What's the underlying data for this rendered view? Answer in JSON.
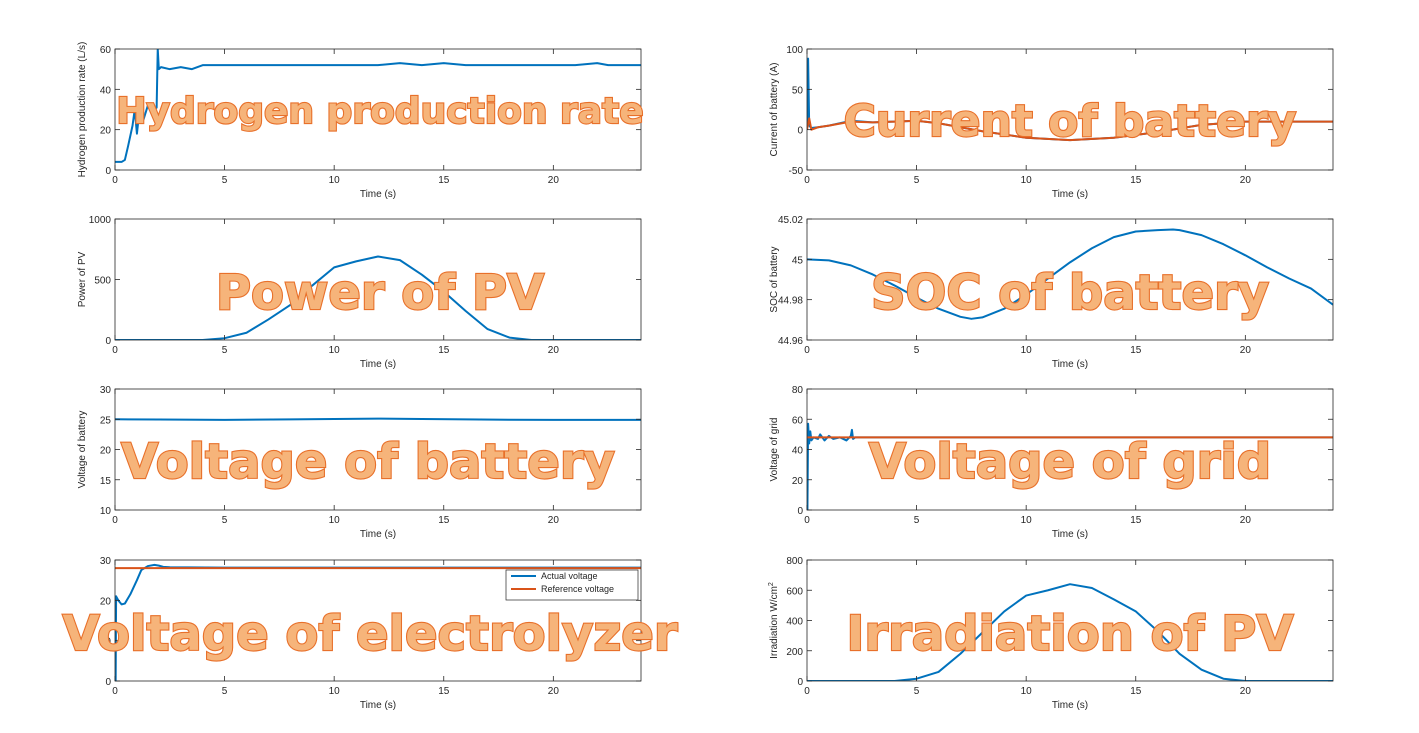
{
  "colors": {
    "blue": "#0072bd",
    "orange": "#d95319",
    "annotation_fill": "#f6b47a",
    "annotation_stroke": "#e8702a",
    "axis": "#262626"
  },
  "chart_data": [
    {
      "type": "line",
      "xlabel": "Time (s)",
      "ylabel": "Hydrogen production rate (L/s)",
      "annotation": "Hydrogen production rate",
      "xlim": [
        0,
        24
      ],
      "ylim": [
        0,
        60
      ],
      "xticks": [
        0,
        5,
        10,
        15,
        20
      ],
      "yticks": [
        0,
        20,
        40,
        60
      ],
      "series": [
        {
          "color": "#0072bd",
          "x": [
            0,
            0.3,
            0.45,
            0.6,
            0.8,
            0.9,
            1.0,
            1.1,
            1.3,
            1.5,
            1.7,
            1.9,
            1.95,
            2.0,
            2.1,
            2.5,
            3,
            3.5,
            4,
            5,
            7,
            9,
            10,
            11,
            12,
            13,
            14,
            15,
            16,
            17,
            18,
            19,
            20,
            21,
            22,
            22.5,
            24
          ],
          "y": [
            4,
            4,
            5,
            12,
            22,
            30,
            18,
            28,
            25,
            32,
            28,
            31,
            60,
            50,
            51,
            50,
            51,
            50,
            52,
            52,
            52,
            52,
            52,
            52,
            52,
            53,
            52,
            53,
            52,
            52,
            52,
            52,
            52,
            52,
            53,
            52,
            52
          ]
        }
      ]
    },
    {
      "type": "line",
      "xlabel": "Time (s)",
      "ylabel": "Current of battery (A)",
      "annotation": "Current of battery",
      "xlim": [
        0,
        24
      ],
      "ylim": [
        -50,
        100
      ],
      "xticks": [
        0,
        5,
        10,
        15,
        20
      ],
      "yticks": [
        -50,
        0,
        50,
        100
      ],
      "series": [
        {
          "color": "#0072bd",
          "x": [
            0,
            0.05,
            0.1,
            0.2,
            0.5,
            1,
            2,
            3,
            4,
            5,
            6,
            8,
            10,
            12,
            14,
            16,
            18,
            20,
            22,
            24
          ],
          "y": [
            0,
            88,
            5,
            2,
            3,
            5,
            11,
            9,
            10,
            11,
            8,
            -2,
            -10,
            -13,
            -10,
            -3,
            6,
            10,
            10,
            10
          ]
        },
        {
          "color": "#d95319",
          "x": [
            0,
            0.1,
            0.2,
            0.5,
            1,
            2,
            3,
            4,
            5,
            6,
            8,
            10,
            12,
            14,
            16,
            18,
            20,
            22,
            24
          ],
          "y": [
            0,
            14,
            0,
            3,
            5,
            10,
            9,
            10,
            11,
            8,
            -2,
            -10,
            -13,
            -10,
            -3,
            6,
            10,
            10,
            10
          ]
        }
      ]
    },
    {
      "type": "line",
      "xlabel": "Time (s)",
      "ylabel": "Power of PV",
      "annotation": "Power of PV",
      "xlim": [
        0,
        24
      ],
      "ylim": [
        0,
        1000
      ],
      "xticks": [
        0,
        5,
        10,
        15,
        20
      ],
      "yticks": [
        0,
        500,
        1000
      ],
      "series": [
        {
          "color": "#0072bd",
          "x": [
            0,
            4,
            5,
            6,
            7,
            8,
            9,
            10,
            11,
            12,
            13,
            14,
            15,
            16,
            17,
            18,
            19,
            20,
            24
          ],
          "y": [
            0,
            0,
            15,
            60,
            170,
            290,
            450,
            600,
            650,
            690,
            660,
            540,
            400,
            240,
            90,
            20,
            0,
            0,
            0
          ]
        }
      ]
    },
    {
      "type": "line",
      "xlabel": "Time (s)",
      "ylabel": "SOC of battery",
      "annotation": "SOC of battery",
      "xlim": [
        0,
        24
      ],
      "ylim": [
        44.96,
        45.02
      ],
      "xticks": [
        0,
        5,
        10,
        15,
        20
      ],
      "yticks": [
        44.96,
        44.98,
        45,
        45.02
      ],
      "series": [
        {
          "color": "#0072bd",
          "x": [
            0,
            1,
            2,
            3,
            4,
            5,
            6,
            7,
            7.5,
            8,
            9,
            10,
            11,
            12,
            13,
            14,
            15,
            16,
            16.7,
            17,
            18,
            19,
            20,
            21,
            22,
            23,
            24
          ],
          "y": [
            45.0,
            44.9995,
            44.997,
            44.9925,
            44.987,
            44.981,
            44.9755,
            44.9715,
            44.9705,
            44.9712,
            44.9755,
            44.9825,
            44.9905,
            44.9985,
            45.0055,
            45.011,
            45.0138,
            45.0145,
            45.0148,
            45.0145,
            45.012,
            45.0075,
            45.002,
            44.996,
            44.9905,
            44.9855,
            44.9775
          ]
        }
      ]
    },
    {
      "type": "line",
      "xlabel": "Time (s)",
      "ylabel": "Voltage of battery",
      "annotation": "Voltage of battery",
      "xlim": [
        0,
        24
      ],
      "ylim": [
        10,
        30
      ],
      "xticks": [
        0,
        5,
        10,
        15,
        20
      ],
      "yticks": [
        10,
        15,
        20,
        25,
        30
      ],
      "series": [
        {
          "color": "#0072bd",
          "x": [
            0,
            2,
            5,
            8,
            10,
            12,
            14,
            16,
            18,
            20,
            24
          ],
          "y": [
            25.0,
            24.95,
            24.9,
            24.97,
            25.05,
            25.1,
            25.05,
            24.98,
            24.92,
            24.9,
            24.9
          ]
        }
      ]
    },
    {
      "type": "line",
      "xlabel": "Time (s)",
      "ylabel": "Voltage of grid",
      "annotation": "Voltage of grid",
      "xlim": [
        0,
        24
      ],
      "ylim": [
        0,
        80
      ],
      "xticks": [
        0,
        5,
        10,
        15,
        20
      ],
      "yticks": [
        0,
        20,
        40,
        60,
        80
      ],
      "series": [
        {
          "color": "#0072bd",
          "x": [
            0,
            0.02,
            0.05,
            0.1,
            0.15,
            0.2,
            0.3,
            0.5,
            0.6,
            0.8,
            1.0,
            1.2,
            1.5,
            1.8,
            2.0,
            2.05,
            2.1,
            2.2,
            2.5,
            5,
            10,
            15,
            20,
            24
          ],
          "y": [
            0,
            0,
            57,
            44,
            52,
            46,
            48,
            47,
            50,
            46,
            49,
            47,
            48,
            46,
            49,
            53,
            47,
            48,
            48,
            48,
            48,
            48,
            48,
            48
          ]
        },
        {
          "color": "#d95319",
          "x": [
            0,
            0.3,
            1,
            2,
            5,
            10,
            15,
            20,
            24
          ],
          "y": [
            48,
            48,
            48,
            48,
            48,
            48,
            48,
            48,
            48
          ]
        }
      ]
    },
    {
      "type": "line",
      "xlabel": "Time (s)",
      "ylabel": "",
      "annotation": "Voltage of electrolyzer",
      "xlim": [
        0,
        24
      ],
      "ylim": [
        0,
        30
      ],
      "xticks": [
        0,
        5,
        10,
        15,
        20
      ],
      "yticks": [
        0,
        10,
        20,
        30
      ],
      "legend": {
        "position": "top-right",
        "entries": [
          "Actual voltage",
          "Reference voltage"
        ]
      },
      "series": [
        {
          "name": "Actual voltage",
          "color": "#0072bd",
          "x": [
            0,
            0.03,
            0.05,
            0.15,
            0.3,
            0.45,
            0.7,
            1.0,
            1.2,
            1.5,
            1.8,
            2.0,
            2.2,
            2.5,
            5,
            10,
            15,
            20,
            24
          ],
          "y": [
            0,
            0,
            21,
            20,
            19,
            19.2,
            21.5,
            25,
            27.5,
            28.5,
            28.8,
            28.6,
            28.3,
            28.2,
            28.1,
            28.1,
            28.1,
            28.1,
            28.1
          ]
        },
        {
          "name": "Reference voltage",
          "color": "#d95319",
          "x": [
            0,
            2,
            5,
            10,
            15,
            20,
            24
          ],
          "y": [
            28,
            28,
            28,
            28,
            28,
            28,
            28
          ]
        }
      ]
    },
    {
      "type": "line",
      "xlabel": "Time (s)",
      "ylabel": "Irradiation W/cm",
      "ylabel_sup": "2",
      "annotation": "Irradiation of PV",
      "xlim": [
        0,
        24
      ],
      "ylim": [
        0,
        800
      ],
      "xticks": [
        0,
        5,
        10,
        15,
        20
      ],
      "yticks": [
        0,
        200,
        400,
        600,
        800
      ],
      "series": [
        {
          "color": "#0072bd",
          "x": [
            0,
            4,
            5,
            6,
            7,
            8,
            9,
            10,
            11,
            12,
            13,
            14,
            15,
            16,
            17,
            18,
            19,
            20,
            24
          ],
          "y": [
            0,
            0,
            15,
            60,
            180,
            320,
            460,
            565,
            600,
            640,
            615,
            540,
            460,
            330,
            180,
            75,
            15,
            0,
            0
          ]
        }
      ]
    }
  ]
}
